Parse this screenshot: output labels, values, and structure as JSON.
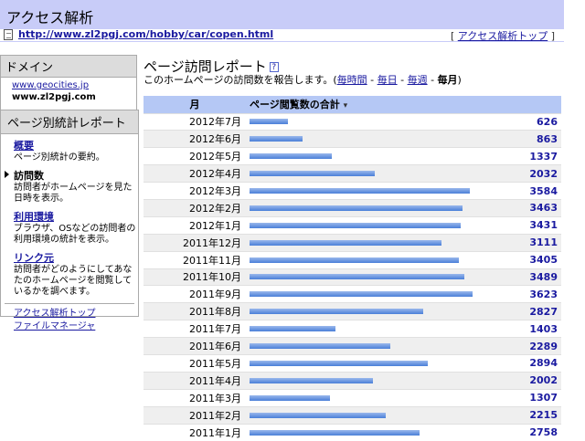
{
  "app_title": "アクセス解析",
  "url_bar": {
    "url": "http://www.zl2pgj.com/hobby/car/copen.html",
    "top_link_label": "アクセス解析トップ",
    "bracket_open": "[",
    "bracket_close": "]"
  },
  "sidebar": {
    "domain_heading": "ドメイン",
    "domain_link": "www.geocities.jp",
    "domain_current": "www.zl2pgj.com",
    "reports_heading": "ページ別統計レポート",
    "items": [
      {
        "label": "概要",
        "desc": "ページ別統計の要約。",
        "current": false
      },
      {
        "label": "訪問数",
        "desc": "訪問者がホームページを見た日時を表示。",
        "current": true
      },
      {
        "label": "利用環境",
        "desc": "ブラウザ、OSなどの訪問者の利用環境の統計を表示。",
        "current": false
      },
      {
        "label": "リンク元",
        "desc": "訪問者がどのようにしてあなたのホームページを閲覧しているかを調べます。",
        "current": false
      }
    ],
    "links": [
      "アクセス解析トップ",
      "ファイルマネージャ"
    ]
  },
  "main": {
    "title": "ページ訪問レポート",
    "help_glyph": "?",
    "subtitle_prefix": "このホームページの訪問数を報告します。(",
    "periods": [
      "毎時間",
      "毎日",
      "毎週",
      "毎月"
    ],
    "period_sep": " - ",
    "subtitle_suffix": ")",
    "col_month": "月",
    "col_total": "ページ閲覧数の合計",
    "sort_marker": "▾"
  },
  "chart_data": {
    "type": "bar",
    "categories": [
      "2012年7月",
      "2012年6月",
      "2012年5月",
      "2012年4月",
      "2012年3月",
      "2012年2月",
      "2012年1月",
      "2011年12月",
      "2011年11月",
      "2011年10月",
      "2011年9月",
      "2011年8月",
      "2011年7月",
      "2011年6月",
      "2011年5月",
      "2011年4月",
      "2011年3月",
      "2011年2月",
      "2011年1月"
    ],
    "values": [
      626,
      863,
      1337,
      2032,
      3584,
      3463,
      3431,
      3111,
      3405,
      3489,
      3623,
      2827,
      1403,
      2289,
      2894,
      2002,
      1307,
      2215,
      2758
    ],
    "max": 3623,
    "bar_colors": [
      "#9ab8ec",
      "#4a7fd8"
    ]
  }
}
